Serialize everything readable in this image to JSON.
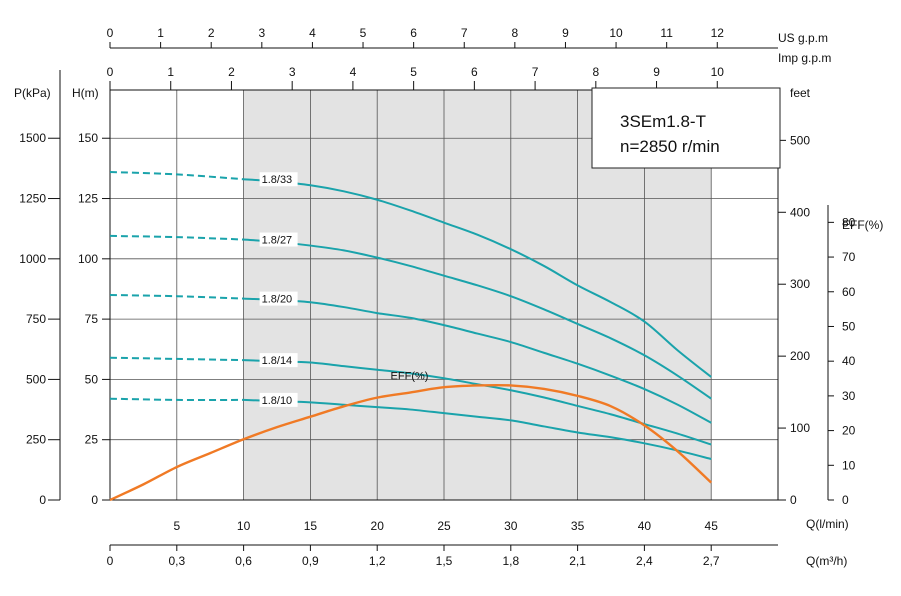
{
  "chart_data": {
    "type": "line",
    "title": "3SEm1.8-T",
    "subtitle": "n=2850 r/min",
    "axes": {
      "x_flow_lmin": {
        "label": "Q(l/min)",
        "ticks": [
          5,
          10,
          15,
          20,
          25,
          30,
          35,
          40,
          45
        ],
        "range": [
          0,
          50
        ]
      },
      "x_flow_m3h": {
        "label": "Q(m³/h)",
        "ticks": [
          "0",
          "0,3",
          "0,6",
          "0,9",
          "1,2",
          "1,5",
          "1,8",
          "2,1",
          "2,4",
          "2,7"
        ],
        "range": [
          0,
          3.0
        ]
      },
      "x_us_gpm": {
        "label": "US  g.p.m",
        "ticks": [
          0,
          1,
          2,
          3,
          4,
          5,
          6,
          7,
          8,
          9,
          10,
          11,
          12
        ],
        "range": [
          0,
          13.2
        ]
      },
      "x_imp_gpm": {
        "label": "Imp  g.p.m",
        "ticks": [
          0,
          1,
          2,
          3,
          4,
          5,
          6,
          7,
          8,
          9,
          10
        ],
        "range": [
          0,
          11
        ]
      },
      "y_pressure_kpa": {
        "label": "P(kPa)",
        "ticks": [
          0,
          250,
          500,
          750,
          1000,
          1250,
          1500
        ],
        "range": [
          0,
          1700
        ]
      },
      "y_head_m": {
        "label": "H(m)",
        "ticks": [
          0,
          25,
          50,
          75,
          100,
          125,
          150
        ],
        "range": [
          0,
          170
        ]
      },
      "y_feet": {
        "label": "feet",
        "ticks": [
          0,
          100,
          200,
          300,
          400,
          500
        ],
        "range": [
          0,
          570
        ]
      },
      "y_eff_pct": {
        "label": "EFF(%)",
        "ticks": [
          0,
          10,
          20,
          30,
          40,
          50,
          60,
          70,
          80
        ],
        "range": [
          0,
          85
        ]
      }
    },
    "operating_range_lmin": [
      10,
      45
    ],
    "series": [
      {
        "name": "1.8/33",
        "label": "1.8/33",
        "dashed_x": [
          0,
          5,
          10
        ],
        "dashed_y": [
          136,
          135,
          133
        ],
        "x": [
          10,
          12.5,
          15,
          17.5,
          20,
          22.5,
          25,
          27.5,
          30,
          32.5,
          35,
          37.5,
          40,
          42.5,
          45
        ],
        "y": [
          133,
          132,
          130.5,
          128,
          124.5,
          120,
          115,
          110,
          104,
          97,
          89,
          82,
          74,
          62,
          51
        ]
      },
      {
        "name": "1.8/27",
        "label": "1.8/27",
        "dashed_x": [
          0,
          5,
          10
        ],
        "dashed_y": [
          109.5,
          109,
          108
        ],
        "x": [
          10,
          12.5,
          15,
          17.5,
          20,
          22.5,
          25,
          27.5,
          30,
          32.5,
          35,
          37.5,
          40,
          42.5,
          45
        ],
        "y": [
          108,
          107,
          105.5,
          103.5,
          100.5,
          97,
          93,
          89,
          84.5,
          79,
          73,
          67,
          60,
          51.5,
          42
        ]
      },
      {
        "name": "1.8/20",
        "label": "1.8/20",
        "dashed_x": [
          0,
          5,
          10
        ],
        "dashed_y": [
          85,
          84.5,
          83.5
        ],
        "x": [
          10,
          12.5,
          15,
          17.5,
          20,
          22.5,
          25,
          27.5,
          30,
          32.5,
          35,
          37.5,
          40,
          42.5,
          45
        ],
        "y": [
          83.5,
          83,
          82,
          80,
          77.5,
          75.5,
          72.5,
          69,
          65.5,
          61,
          56.5,
          51.5,
          46,
          39.5,
          32
        ]
      },
      {
        "name": "1.8/14",
        "label": "1.8/14",
        "dashed_x": [
          0,
          5,
          10
        ],
        "dashed_y": [
          59,
          58.5,
          58
        ],
        "x": [
          10,
          12.5,
          15,
          17.5,
          20,
          22.5,
          25,
          27.5,
          30,
          32.5,
          35,
          37.5,
          40,
          42.5,
          45
        ],
        "y": [
          58,
          57.5,
          57,
          55.5,
          54,
          52.5,
          50.5,
          48,
          45.5,
          42.5,
          39,
          35.5,
          31.5,
          27.5,
          23
        ]
      },
      {
        "name": "1.8/10",
        "label": "1.8/10",
        "dashed_x": [
          0,
          5,
          10
        ],
        "dashed_y": [
          42,
          41.5,
          41.5
        ],
        "x": [
          10,
          12.5,
          15,
          17.5,
          20,
          22.5,
          25,
          27.5,
          30,
          32.5,
          35,
          37.5,
          40,
          42.5,
          45
        ],
        "y": [
          41.5,
          41,
          40.5,
          39.5,
          38.5,
          37.5,
          36,
          34.5,
          33,
          30.5,
          28,
          26,
          23.5,
          20.5,
          17
        ]
      }
    ],
    "efficiency": {
      "name": "EFF(%)",
      "label": "EFF(%)",
      "x": [
        0,
        2.5,
        5,
        7.5,
        10,
        12.5,
        15,
        17.5,
        20,
        22.5,
        25,
        27.5,
        30,
        32.5,
        35,
        37.5,
        40,
        42.5,
        45
      ],
      "y": [
        0,
        4.5,
        9.5,
        13.5,
        17.5,
        21,
        24,
        27,
        29.5,
        31,
        32.5,
        33,
        33,
        32,
        30,
        27,
        21.5,
        14,
        5
      ]
    }
  },
  "colors": {
    "head_curve": "#1aa3ab",
    "efficiency_curve": "#f07a25",
    "operating_band": "#e3e3e3",
    "grid": "#555555"
  }
}
